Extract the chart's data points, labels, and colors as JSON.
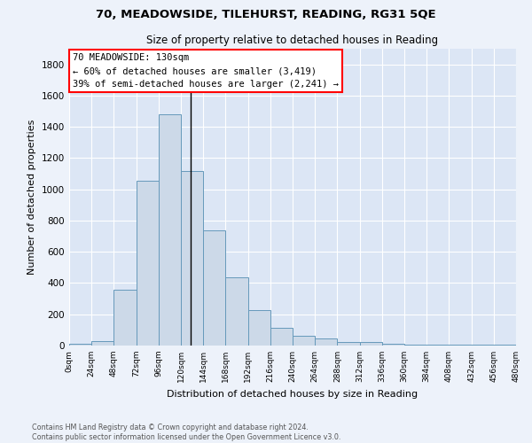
{
  "title_line1": "70, MEADOWSIDE, TILEHURST, READING, RG31 5QE",
  "title_line2": "Size of property relative to detached houses in Reading",
  "xlabel": "Distribution of detached houses by size in Reading",
  "ylabel": "Number of detached properties",
  "bar_color": "#ccd9e8",
  "bar_edge_color": "#6699bb",
  "background_color": "#dce6f5",
  "fig_background_color": "#edf2fa",
  "annotation_text": "70 MEADOWSIDE: 130sqm\n← 60% of detached houses are smaller (3,419)\n39% of semi-detached houses are larger (2,241) →",
  "annotation_box_color": "white",
  "annotation_box_edge_color": "red",
  "property_line_x": 130,
  "property_line_color": "black",
  "footer_line1": "Contains HM Land Registry data © Crown copyright and database right 2024.",
  "footer_line2": "Contains public sector information licensed under the Open Government Licence v3.0.",
  "bin_edges": [
    0,
    24,
    48,
    72,
    96,
    120,
    144,
    168,
    192,
    216,
    240,
    264,
    288,
    312,
    336,
    360,
    384,
    408,
    432,
    456,
    480
  ],
  "bin_heights": [
    12,
    28,
    355,
    1055,
    1480,
    1120,
    740,
    435,
    225,
    115,
    60,
    48,
    25,
    20,
    10,
    7,
    5,
    3,
    3,
    3
  ],
  "ylim": [
    0,
    1900
  ],
  "yticks": [
    0,
    200,
    400,
    600,
    800,
    1000,
    1200,
    1400,
    1600,
    1800
  ]
}
